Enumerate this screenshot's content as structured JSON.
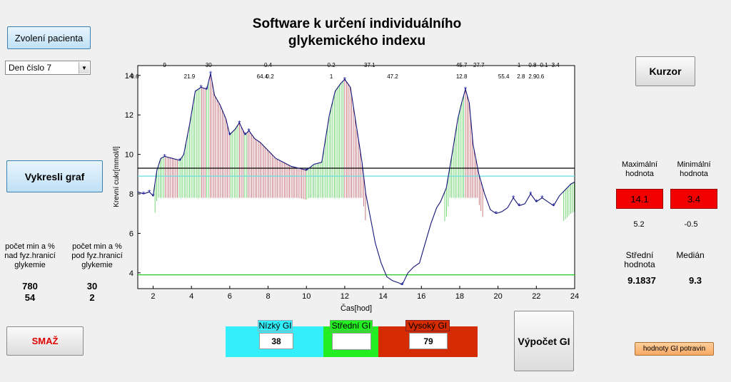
{
  "app": {
    "title_line1": "Software k určení individuálního",
    "title_line2": "glykemického indexu"
  },
  "left": {
    "patient_button": "Zvolení pacienta",
    "day_select": "Den číslo 7",
    "draw_button": "Vykresli graf",
    "above_label": "počet min a % nad fyz.hranicí glykemie",
    "below_label": "počet min a % pod fyz.hranicí glykemie",
    "above_min": "780",
    "above_pct": "54",
    "below_min": "30",
    "below_pct": "2",
    "delete_button": "SMAŽ"
  },
  "right": {
    "cursor_button": "Kurzor",
    "max_label": "Maximální hodnota",
    "min_label": "Minimální hodnota",
    "max_value": "14.1",
    "min_value": "3.4",
    "max_sub": "5.2",
    "min_sub": "-0.5",
    "mean_label": "Střední hodnota",
    "median_label": "Medián",
    "mean_value": "9.1837",
    "median_value": "9.3",
    "food_gi_button": "hodnoty GI potravin"
  },
  "gi": {
    "low_label": "Nízký GI",
    "mid_label": "Střední GI",
    "high_label": "Vysoký GI",
    "low_value": "38",
    "mid_value": "",
    "high_value": "79",
    "compute_button": "Výpočet GI",
    "low_color": "#33eefb",
    "mid_color": "#22ee22",
    "high_color": "#d42b00"
  },
  "chart_data": {
    "type": "line",
    "xlabel": "Čas[hod]",
    "ylabel": "Krevní cukr[mmol/l]",
    "xlim": [
      1.2,
      24
    ],
    "ylim": [
      3.2,
      14.5
    ],
    "xticks": [
      2,
      4,
      6,
      8,
      10,
      12,
      14,
      16,
      18,
      20,
      22,
      24
    ],
    "yticks": [
      4,
      6,
      8,
      10,
      12,
      14
    ],
    "hlines": [
      {
        "y": 9.3,
        "color": "#000000"
      },
      {
        "y": 8.9,
        "color": "#66dddd"
      },
      {
        "y": 3.9,
        "color": "#22cc22"
      }
    ],
    "x": [
      1.2,
      1.5,
      1.8,
      2.0,
      2.2,
      2.4,
      2.6,
      3.0,
      3.4,
      3.6,
      3.9,
      4.2,
      4.5,
      4.8,
      5.0,
      5.2,
      5.5,
      5.8,
      6.0,
      6.3,
      6.5,
      6.8,
      7.0,
      7.3,
      7.6,
      8.0,
      8.4,
      8.8,
      9.2,
      9.6,
      10.0,
      10.4,
      10.8,
      11.2,
      11.5,
      11.8,
      12.0,
      12.3,
      12.6,
      12.9,
      13.1,
      13.3,
      13.6,
      13.9,
      14.2,
      14.5,
      14.8,
      15.0,
      15.3,
      15.6,
      15.9,
      16.2,
      16.5,
      16.8,
      17.0,
      17.3,
      17.6,
      17.9,
      18.1,
      18.3,
      18.5,
      18.7,
      19.0,
      19.3,
      19.6,
      19.9,
      20.2,
      20.5,
      20.8,
      21.1,
      21.4,
      21.7,
      22.0,
      22.3,
      22.6,
      22.9,
      23.2,
      23.5,
      23.8,
      24.0
    ],
    "y": [
      8.1,
      8.0,
      8.1,
      7.9,
      9.2,
      9.8,
      9.9,
      9.8,
      9.7,
      10.0,
      11.5,
      13.2,
      13.4,
      13.3,
      14.1,
      13.0,
      12.5,
      11.8,
      11.0,
      11.3,
      11.6,
      11.0,
      11.2,
      10.8,
      10.6,
      10.2,
      9.8,
      9.6,
      9.4,
      9.3,
      9.2,
      9.5,
      9.6,
      12.0,
      13.2,
      13.6,
      13.8,
      13.4,
      11.5,
      9.6,
      8.0,
      7.0,
      5.5,
      4.5,
      3.8,
      3.6,
      3.5,
      3.4,
      4.0,
      4.3,
      4.5,
      5.5,
      6.5,
      7.3,
      7.6,
      8.3,
      10.0,
      11.8,
      12.6,
      13.3,
      12.6,
      10.5,
      9.0,
      8.0,
      7.2,
      7.0,
      7.1,
      7.3,
      7.8,
      7.4,
      7.5,
      8.0,
      7.6,
      7.8,
      7.6,
      7.4,
      7.9,
      8.2,
      8.5,
      8.6
    ],
    "top_labels_row1": [
      {
        "x": 2.6,
        "t": "9"
      },
      {
        "x": 4.9,
        "t": "30"
      },
      {
        "x": 8.0,
        "t": "0.4"
      },
      {
        "x": 11.3,
        "t": "0.2"
      },
      {
        "x": 13.3,
        "t": "37.1"
      },
      {
        "x": 18.1,
        "t": "45.7"
      },
      {
        "x": 19.0,
        "t": "27.7"
      },
      {
        "x": 21.1,
        "t": "1"
      },
      {
        "x": 21.8,
        "t": "0.8"
      },
      {
        "x": 22.4,
        "t": "0.1"
      },
      {
        "x": 23.0,
        "t": "3.4"
      }
    ],
    "top_labels_row2": [
      {
        "x": 1.0,
        "t": "-0.6"
      },
      {
        "x": 3.9,
        "t": "21.9"
      },
      {
        "x": 7.7,
        "t": "64.4"
      },
      {
        "x": 8.1,
        "t": "0.2"
      },
      {
        "x": 11.3,
        "t": "1"
      },
      {
        "x": 14.5,
        "t": "47.2"
      },
      {
        "x": 18.1,
        "t": "12.8"
      },
      {
        "x": 20.3,
        "t": "55.4"
      },
      {
        "x": 21.2,
        "t": "2.8"
      },
      {
        "x": 21.8,
        "t": "2.9"
      },
      {
        "x": 22.2,
        "t": "0.6"
      }
    ]
  }
}
